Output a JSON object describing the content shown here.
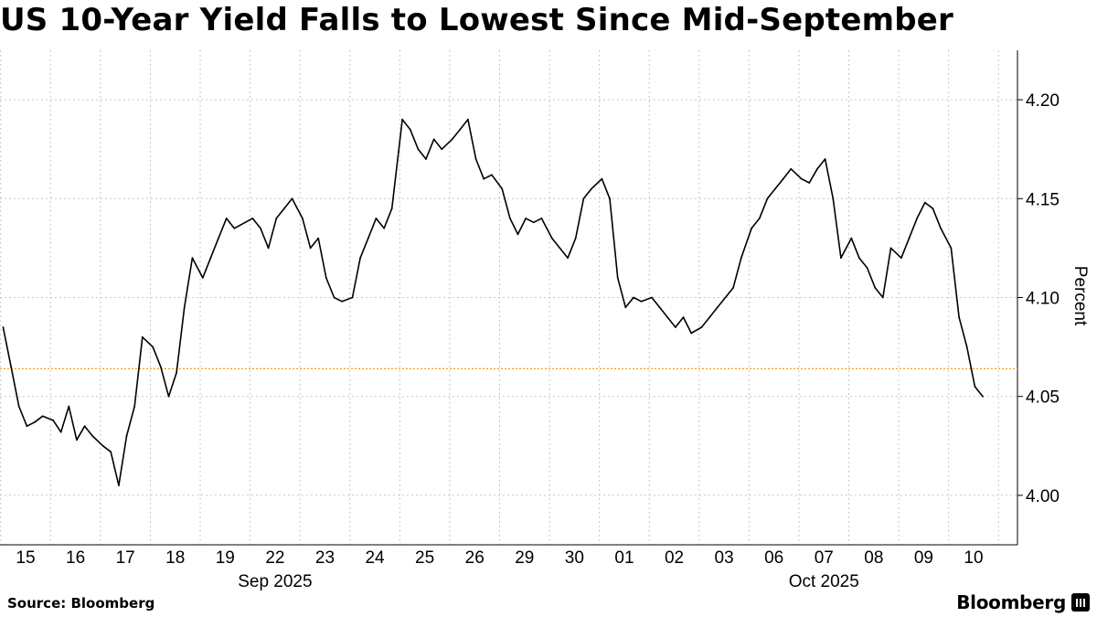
{
  "title": "US 10-Year Yield Falls to Lowest Since Mid-September",
  "source": "Source: Bloomberg",
  "brand": "Bloomberg",
  "icons": {
    "brand_logo": "bloomberg-terminal-icon"
  },
  "colors": {
    "series": "#000000",
    "reference_line": "#f0a020",
    "grid": "#c8c8c8"
  },
  "chart_data": {
    "type": "line",
    "ylabel": "Percent",
    "y_ticks": [
      "4.00",
      "4.05",
      "4.10",
      "4.15",
      "4.20"
    ],
    "ylim": [
      3.975,
      4.225
    ],
    "y_axis_side": "right",
    "grid": true,
    "reference_line": 4.064,
    "x_tick_labels": [
      "15",
      "16",
      "17",
      "18",
      "19",
      "22",
      "23",
      "24",
      "25",
      "26",
      "29",
      "30",
      "01",
      "02",
      "03",
      "06",
      "07",
      "08",
      "09",
      "10"
    ],
    "x_month_labels": [
      {
        "label": "Sep 2025",
        "under_ticks": [
          "19",
          "22",
          "23"
        ]
      },
      {
        "label": "Oct 2025",
        "under_ticks": [
          "06",
          "07",
          "08"
        ]
      }
    ],
    "series": [
      {
        "x": [
          "Sep 15 00:00",
          "Sep 15 04:00",
          "Sep 15 08:00",
          "Sep 15 12:00",
          "Sep 15 16:00",
          "Sep 15 20:00",
          "Sep 16 00:00",
          "Sep 16 04:00",
          "Sep 16 08:00",
          "Sep 16 12:00",
          "Sep 16 16:00",
          "Sep 16 20:00",
          "Sep 17 00:00",
          "Sep 17 04:00",
          "Sep 17 08:00",
          "Sep 17 12:00",
          "Sep 17 16:00",
          "Sep 17 20:00",
          "Sep 18 00:00",
          "Sep 18 04:00",
          "Sep 18 08:00",
          "Sep 18 12:00",
          "Sep 18 16:00",
          "Sep 18 20:00",
          "Sep 19 00:00",
          "Sep 19 04:00",
          "Sep 19 08:00",
          "Sep 19 12:00",
          "Sep 19 16:00",
          "Sep 22 00:00",
          "Sep 22 04:00",
          "Sep 22 08:00",
          "Sep 22 12:00",
          "Sep 22 16:00",
          "Sep 22 20:00",
          "Sep 23 00:00",
          "Sep 23 04:00",
          "Sep 23 08:00",
          "Sep 23 12:00",
          "Sep 23 16:00",
          "Sep 23 20:00",
          "Sep 24 00:00",
          "Sep 24 04:00",
          "Sep 24 08:00",
          "Sep 24 12:00",
          "Sep 24 16:00",
          "Sep 24 20:00",
          "Sep 25 00:00",
          "Sep 25 04:00",
          "Sep 25 08:00",
          "Sep 25 12:00",
          "Sep 25 16:00",
          "Sep 25 20:00",
          "Sep 26 00:00",
          "Sep 26 04:00",
          "Sep 26 08:00",
          "Sep 26 12:00",
          "Sep 26 16:00",
          "Sep 26 20:00",
          "Sep 29 00:00",
          "Sep 29 04:00",
          "Sep 29 08:00",
          "Sep 29 12:00",
          "Sep 29 16:00",
          "Sep 29 20:00",
          "Sep 30 00:00",
          "Sep 30 04:00",
          "Sep 30 08:00",
          "Sep 30 12:00",
          "Sep 30 16:00",
          "Sep 30 20:00",
          "Oct 01 00:00",
          "Oct 01 04:00",
          "Oct 01 08:00",
          "Oct 01 12:00",
          "Oct 01 16:00",
          "Oct 01 20:00",
          "Oct 02 00:00",
          "Oct 02 04:00",
          "Oct 02 08:00",
          "Oct 02 12:00",
          "Oct 02 16:00",
          "Oct 02 20:00",
          "Oct 03 00:00",
          "Oct 03 04:00",
          "Oct 03 08:00",
          "Oct 03 12:00",
          "Oct 03 16:00",
          "Oct 03 20:00",
          "Oct 06 00:00",
          "Oct 06 04:00",
          "Oct 06 08:00",
          "Oct 06 12:00",
          "Oct 06 16:00",
          "Oct 06 20:00",
          "Oct 07 00:00",
          "Oct 07 04:00",
          "Oct 07 08:00",
          "Oct 07 12:00",
          "Oct 07 16:00",
          "Oct 07 20:00",
          "Oct 08 00:00",
          "Oct 08 04:00",
          "Oct 08 08:00",
          "Oct 08 12:00",
          "Oct 08 16:00",
          "Oct 08 20:00",
          "Oct 09 00:00",
          "Oct 09 04:00",
          "Oct 09 08:00",
          "Oct 09 12:00",
          "Oct 09 16:00",
          "Oct 09 20:00",
          "Oct 10 00:00",
          "Oct 10 04:00",
          "Oct 10 08:00",
          "Oct 10 12:00",
          "Oct 10 16:00"
        ],
        "values": [
          4.085,
          4.065,
          4.045,
          4.035,
          4.037,
          4.04,
          4.038,
          4.032,
          4.045,
          4.028,
          4.035,
          4.03,
          4.025,
          4.022,
          4.005,
          4.03,
          4.045,
          4.08,
          4.075,
          4.065,
          4.05,
          4.062,
          4.095,
          4.12,
          4.11,
          4.12,
          4.13,
          4.14,
          4.135,
          4.14,
          4.135,
          4.125,
          4.14,
          4.145,
          4.15,
          4.14,
          4.125,
          4.13,
          4.11,
          4.1,
          4.098,
          4.1,
          4.12,
          4.13,
          4.14,
          4.135,
          4.145,
          4.19,
          4.185,
          4.175,
          4.17,
          4.18,
          4.175,
          4.18,
          4.185,
          4.19,
          4.17,
          4.16,
          4.162,
          4.155,
          4.14,
          4.132,
          4.14,
          4.138,
          4.14,
          4.13,
          4.125,
          4.12,
          4.13,
          4.15,
          4.155,
          4.16,
          4.15,
          4.11,
          4.095,
          4.1,
          4.098,
          4.1,
          4.095,
          4.09,
          4.085,
          4.09,
          4.082,
          4.085,
          4.09,
          4.095,
          4.1,
          4.105,
          4.12,
          4.135,
          4.14,
          4.15,
          4.155,
          4.16,
          4.165,
          4.16,
          4.158,
          4.165,
          4.17,
          4.15,
          4.12,
          4.13,
          4.12,
          4.115,
          4.105,
          4.1,
          4.125,
          4.12,
          4.13,
          4.14,
          4.148,
          4.145,
          4.135,
          4.125,
          4.09,
          4.075,
          4.055,
          4.05
        ]
      }
    ]
  }
}
